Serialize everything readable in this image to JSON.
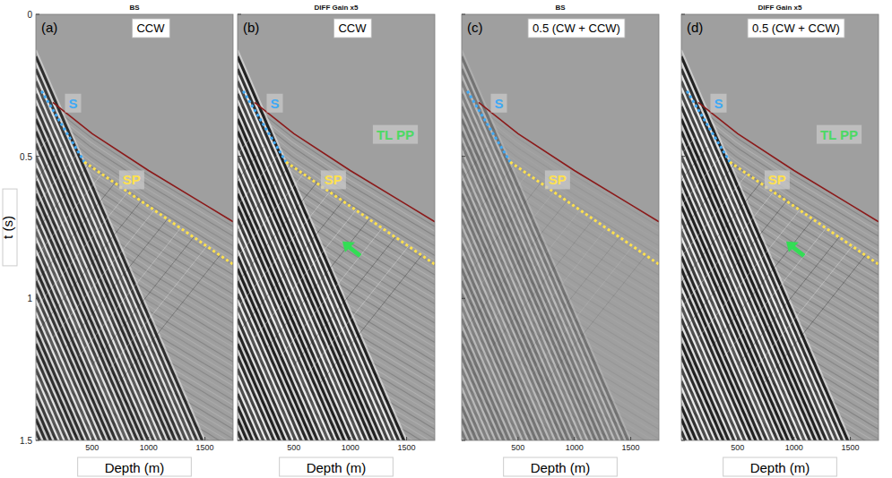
{
  "chart_data": [
    {
      "type": "line",
      "title": "BS",
      "panel": "(a)",
      "label": "CCW",
      "xlabel": "Depth (m)",
      "ylabel": "t (s)",
      "xlim": [
        0,
        1750
      ],
      "ylim": [
        0,
        1.5
      ],
      "xticks": [
        500,
        1000,
        1500
      ],
      "yticks": [
        0,
        0.5,
        1,
        1.5
      ],
      "series": [
        {
          "color": "#8b1a1a",
          "line_style": "solid",
          "x": [
            150,
            500,
            1000,
            1500,
            1750
          ],
          "values": [
            0.31,
            0.42,
            0.55,
            0.67,
            0.73
          ]
        },
        {
          "color": "#3fa9f5",
          "line_style": "dotted",
          "x": [
            50,
            430
          ],
          "values": [
            0.27,
            0.52
          ]
        },
        {
          "color": "#ffe14d",
          "line_style": "dotted",
          "x": [
            430,
            1750
          ],
          "values": [
            0.52,
            0.88
          ]
        }
      ],
      "annotations": [
        {
          "text": "S",
          "x": 330,
          "y": 0.33,
          "color": "#3fa9f5"
        },
        {
          "text": "SP",
          "x": 850,
          "y": 0.6,
          "color": "#ffe14d"
        }
      ]
    },
    {
      "type": "line",
      "title": "DIFF Gain x5",
      "panel": "(b)",
      "label": "CCW",
      "xlabel": "Depth (m)",
      "xlim": [
        0,
        1750
      ],
      "ylim": [
        0,
        1.5
      ],
      "xticks": [
        500,
        1000,
        1500
      ],
      "yticks": [
        0,
        0.5,
        1,
        1.5
      ],
      "tick_labels": "x",
      "series": [
        {
          "color": "#8b1a1a",
          "line_style": "solid",
          "x": [
            150,
            500,
            1000,
            1500,
            1750
          ],
          "values": [
            0.31,
            0.42,
            0.55,
            0.67,
            0.73
          ]
        },
        {
          "color": "#3fa9f5",
          "line_style": "dotted",
          "x": [
            50,
            430
          ],
          "values": [
            0.27,
            0.52
          ]
        },
        {
          "color": "#ffe14d",
          "line_style": "dotted",
          "x": [
            430,
            1750
          ],
          "values": [
            0.52,
            0.88
          ]
        }
      ],
      "annotations": [
        {
          "text": "S",
          "x": 330,
          "y": 0.33,
          "color": "#3fa9f5"
        },
        {
          "text": "SP",
          "x": 850,
          "y": 0.6,
          "color": "#ffe14d"
        },
        {
          "text": "TL PP",
          "x": 1400,
          "y": 0.44,
          "color": "#4cd964"
        }
      ],
      "arrows": [
        {
          "x": 930,
          "y": 0.8,
          "color": "#33dd55"
        }
      ]
    },
    {
      "type": "line",
      "title": "BS",
      "panel": "(c)",
      "label": "0.5 (CW + CCW)",
      "xlabel": "Depth (m)",
      "xlim": [
        0,
        1750
      ],
      "ylim": [
        0,
        1.5
      ],
      "xticks": [
        500,
        1000,
        1500
      ],
      "yticks": [
        0,
        0.5,
        1,
        1.5
      ],
      "tick_labels": "x",
      "series": [
        {
          "color": "#8b1a1a",
          "line_style": "solid",
          "x": [
            150,
            500,
            1000,
            1500,
            1750
          ],
          "values": [
            0.31,
            0.42,
            0.55,
            0.67,
            0.73
          ]
        },
        {
          "color": "#3fa9f5",
          "line_style": "dotted",
          "x": [
            50,
            430
          ],
          "values": [
            0.27,
            0.52
          ]
        },
        {
          "color": "#ffe14d",
          "line_style": "dotted",
          "x": [
            430,
            1750
          ],
          "values": [
            0.52,
            0.88
          ]
        }
      ],
      "annotations": [
        {
          "text": "S",
          "x": 330,
          "y": 0.33,
          "color": "#3fa9f5"
        },
        {
          "text": "SP",
          "x": 850,
          "y": 0.6,
          "color": "#ffe14d"
        }
      ]
    },
    {
      "type": "line",
      "title": "DIFF Gain x5",
      "panel": "(d)",
      "label": "0.5 (CW + CCW)",
      "xlabel": "Depth (m)",
      "xlim": [
        0,
        1750
      ],
      "ylim": [
        0,
        1.5
      ],
      "xticks": [
        500,
        1000,
        1500
      ],
      "yticks": [
        0,
        0.5,
        1,
        1.5
      ],
      "tick_labels": "x",
      "series": [
        {
          "color": "#8b1a1a",
          "line_style": "solid",
          "x": [
            150,
            500,
            1000,
            1500,
            1750
          ],
          "values": [
            0.31,
            0.42,
            0.55,
            0.67,
            0.73
          ]
        },
        {
          "color": "#3fa9f5",
          "line_style": "dotted",
          "x": [
            50,
            430
          ],
          "values": [
            0.27,
            0.52
          ]
        },
        {
          "color": "#ffe14d",
          "line_style": "dotted",
          "x": [
            430,
            1750
          ],
          "values": [
            0.52,
            0.88
          ]
        }
      ],
      "annotations": [
        {
          "text": "S",
          "x": 330,
          "y": 0.33,
          "color": "#3fa9f5"
        },
        {
          "text": "SP",
          "x": 850,
          "y": 0.6,
          "color": "#ffe14d"
        },
        {
          "text": "TL PP",
          "x": 1400,
          "y": 0.44,
          "color": "#4cd964"
        }
      ],
      "arrows": [
        {
          "x": 930,
          "y": 0.8,
          "color": "#33dd55"
        }
      ]
    }
  ]
}
